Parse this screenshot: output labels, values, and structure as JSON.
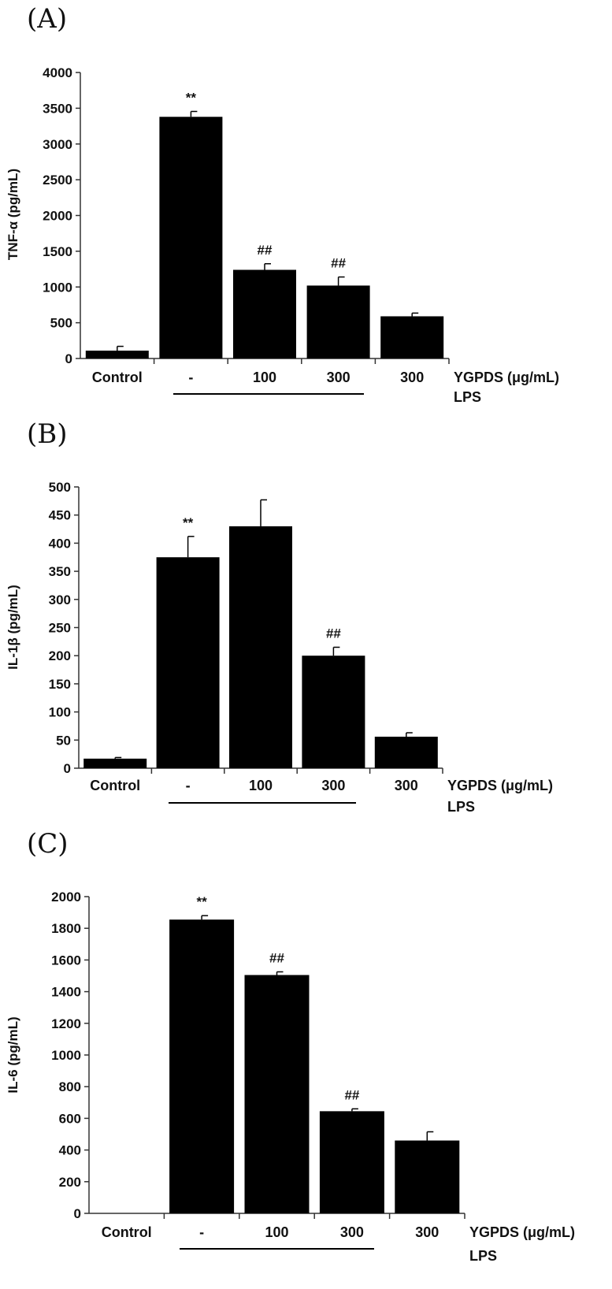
{
  "chart_data": [
    {
      "panel_label": "(A)",
      "type": "bar",
      "ylabel": "TNF-α (pg/mL)",
      "ylim": [
        0,
        4000
      ],
      "yticks": [
        "0",
        "500",
        "1000",
        "1500",
        "2000",
        "2500",
        "3000",
        "3500",
        "4000"
      ],
      "categories": [
        "Control",
        "-",
        "100",
        "300",
        "300"
      ],
      "values": [
        110,
        3380,
        1240,
        1020,
        590
      ],
      "errors": [
        60,
        75,
        85,
        120,
        45
      ],
      "annotations": [
        "",
        "**",
        "##",
        "##",
        ""
      ],
      "treatment_label": "YGPDS (μg/mL)",
      "group_label": "LPS",
      "grid": false
    },
    {
      "panel_label": "(B)",
      "type": "bar",
      "ylabel": "IL-1β (pg/mL)",
      "ylim": [
        0,
        500
      ],
      "yticks": [
        "0",
        "50",
        "100",
        "150",
        "200",
        "250",
        "300",
        "350",
        "400",
        "450",
        "500"
      ],
      "categories": [
        "Control",
        "-",
        "100",
        "300",
        "300"
      ],
      "values": [
        17,
        375,
        430,
        200,
        56
      ],
      "errors": [
        2,
        37,
        47,
        15,
        7
      ],
      "annotations": [
        "",
        "**",
        "",
        "##",
        ""
      ],
      "treatment_label": "YGPDS (μg/mL)",
      "group_label": "LPS",
      "grid": false
    },
    {
      "panel_label": "(C)",
      "type": "bar",
      "ylabel": "IL-6 (pg/mL)",
      "ylim": [
        0,
        2000
      ],
      "yticks": [
        "0",
        "200",
        "400",
        "600",
        "800",
        "1000",
        "1200",
        "1400",
        "1600",
        "1800",
        "2000"
      ],
      "categories": [
        "Control",
        "-",
        "100",
        "300",
        "300"
      ],
      "values": [
        0,
        1855,
        1505,
        645,
        460
      ],
      "errors": [
        0,
        25,
        20,
        15,
        55
      ],
      "annotations": [
        "",
        "**",
        "##",
        "##",
        ""
      ],
      "treatment_label": "YGPDS (μg/mL)",
      "group_label": "LPS",
      "grid": false
    }
  ]
}
